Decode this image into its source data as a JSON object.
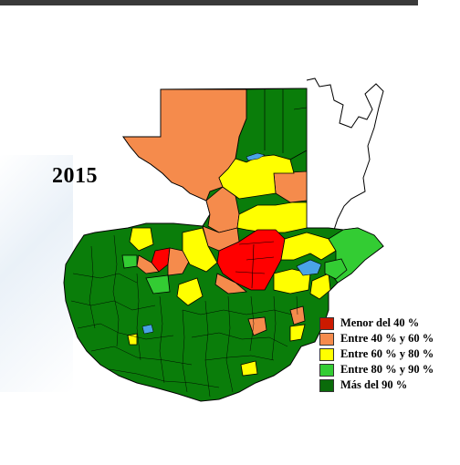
{
  "map": {
    "title": "2015",
    "legend": [
      {
        "label": "Menor del 40 %",
        "color": "#ff0000"
      },
      {
        "label": "Entre 40 % y 60 %",
        "color": "#f58b4c"
      },
      {
        "label": "Entre 60 % y 80 %",
        "color": "#ffff00"
      },
      {
        "label": "Entre 80 % y 90 %",
        "color": "#33cc33"
      },
      {
        "label": "Más del 90 %",
        "color": "#008000"
      }
    ],
    "colors": {
      "red": "#ff0000",
      "orange": "#f58b4c",
      "yellow": "#ffff00",
      "light_green": "#33cc33",
      "dark_green": "#0a7d0a",
      "water": "#4aa3e6",
      "border": "#000000"
    }
  }
}
